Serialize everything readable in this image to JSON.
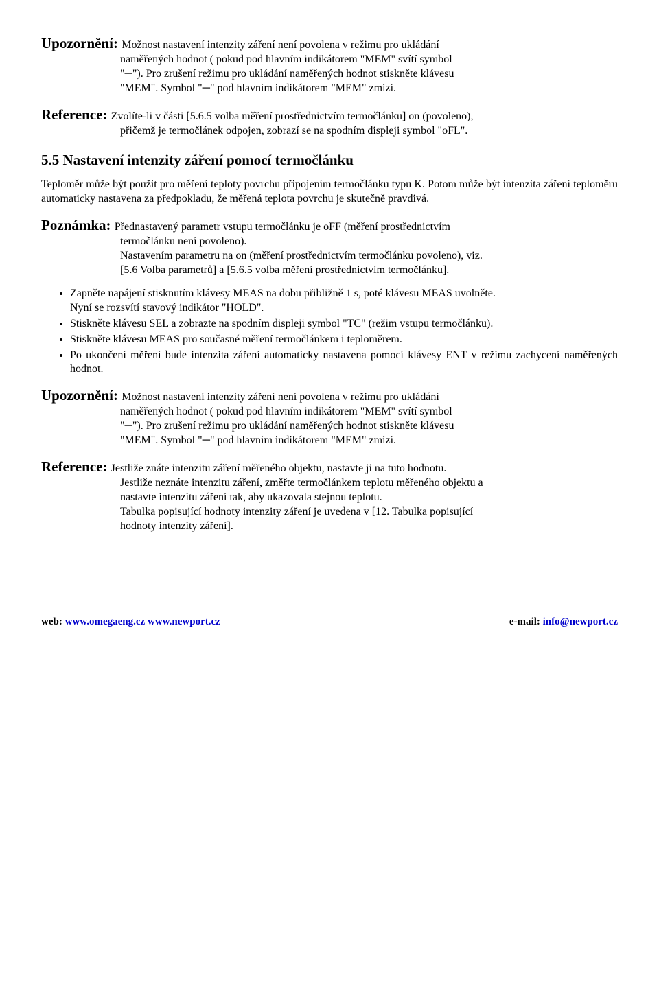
{
  "warn1": {
    "label": "Upozornění: ",
    "line1": "Možnost nastavení intenzity záření není povolena v režimu pro ukládání",
    "line2": "naměřených hodnot ( pokud pod hlavním indikátorem \"MEM\" svítí symbol",
    "line3": "\"─\"). Pro zrušení režimu pro ukládání naměřených hodnot stiskněte klávesu",
    "line4": "\"MEM\". Symbol \"─\" pod hlavním indikátorem \"MEM\" zmizí."
  },
  "ref1": {
    "label": "Reference: ",
    "line1": "Zvolíte-li v části [5.6.5 volba měření prostřednictvím termočlánku] on (povoleno),",
    "line2": "přičemž je termočlánek odpojen, zobrazí se na spodním displeji symbol \"oFL\"."
  },
  "section": {
    "title": "5.5 Nastavení intenzity záření pomocí termočlánku",
    "p1": "Teploměr může být použit pro měření teploty povrchu připojením termočlánku typu K. Potom může být intenzita záření teploměru automaticky nastavena za předpokladu, že měřená teplota povrchu je skutečně pravdivá."
  },
  "note": {
    "label": "Poznámka: ",
    "line1": "Přednastavený parametr vstupu termočlánku je oFF (měření prostřednictvím",
    "line2": "termočlánku není povoleno).",
    "line3": "Nastavením parametru na on (měření prostřednictvím termočlánku povoleno), viz.",
    "line4": "[5.6 Volba parametrů] a [5.6.5 volba měření prostřednictvím termočlánku]."
  },
  "bullets": {
    "b1a": "Zapněte napájení stisknutím klávesy MEAS na dobu přibližně 1 s, poté klávesu MEAS uvolněte.",
    "b1b": "Nyní se rozsvítí stavový indikátor \"HOLD\".",
    "b2": "Stiskněte klávesu SEL a zobrazte na spodním displeji symbol \"TC\" (režim vstupu termočlánku).",
    "b3": "Stiskněte klávesu MEAS pro současné měření termočlánkem i teploměrem.",
    "b4": "Po ukončení měření bude intenzita záření automaticky nastavena pomocí klávesy ENT v režimu zachycení naměřených hodnot."
  },
  "warn2": {
    "label": "Upozornění: ",
    "line1": "Možnost nastavení intenzity záření není povolena v režimu pro ukládání",
    "line2": "naměřených hodnot ( pokud pod hlavním indikátorem \"MEM\" svítí symbol",
    "line3": "\"─\"). Pro zrušení režimu pro ukládání naměřených hodnot stiskněte klávesu",
    "line4": "\"MEM\". Symbol \"─\" pod hlavním indikátorem \"MEM\" zmizí."
  },
  "ref2": {
    "label": "Reference: ",
    "line1": "Jestliže znáte intenzitu záření měřeného objektu, nastavte ji na tuto hodnotu.",
    "line2": "Jestliže neznáte intenzitu záření, změřte termočlánkem teplotu měřeného objektu a",
    "line3": "nastavte intenzitu záření tak, aby ukazovala stejnou teplotu.",
    "line4": "Tabulka popisující hodnoty intenzity záření je uvedena v [12. Tabulka popisující",
    "line5": "hodnoty intenzity záření]."
  },
  "footer": {
    "web_label": "web: ",
    "url1": "www.omegaeng.cz",
    "sep": "   ",
    "url2": "www.newport.cz",
    "email_label": "e-mail: ",
    "email": "info@newport.cz"
  }
}
